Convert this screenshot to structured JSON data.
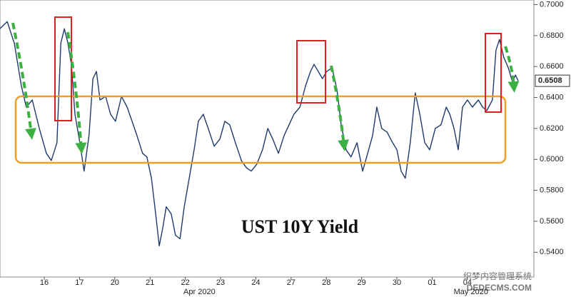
{
  "chart_data": {
    "type": "line",
    "annotation": "UST 10Y Yield",
    "last_value": {
      "value": 0.6508,
      "label": "0.6508"
    },
    "watermark": [
      "织梦内容管理系统",
      "DEDECMS.COM"
    ],
    "xticks": [
      {
        "value": 0.5,
        "label": "16"
      },
      {
        "value": 1.5,
        "label": "17"
      },
      {
        "value": 2.5,
        "label": "20"
      },
      {
        "value": 3.5,
        "label": "21"
      },
      {
        "value": 4.5,
        "label": "22"
      },
      {
        "value": 5.5,
        "label": "23"
      },
      {
        "value": 6.5,
        "label": "24"
      },
      {
        "value": 7.5,
        "label": "27"
      },
      {
        "value": 8.5,
        "label": "28"
      },
      {
        "value": 9.5,
        "label": "29"
      },
      {
        "value": 10.5,
        "label": "30"
      },
      {
        "value": 11.5,
        "label": "01"
      },
      {
        "value": 12.5,
        "label": "04"
      }
    ],
    "month_labels": [
      {
        "value": 4.9,
        "label": "Apr 2020"
      },
      {
        "value": 12.6,
        "label": "May 2020"
      }
    ],
    "xlim": [
      -0.755,
      14.385
    ],
    "ylim": [
      0.524,
      0.703
    ],
    "yticks": [
      {
        "value": 0.54,
        "label": "0.5400"
      },
      {
        "value": 0.56,
        "label": "0.5600"
      },
      {
        "value": 0.58,
        "label": "0.5800"
      },
      {
        "value": 0.6,
        "label": "0.6000"
      },
      {
        "value": 0.62,
        "label": "0.6200"
      },
      {
        "value": 0.64,
        "label": "0.6400"
      },
      {
        "value": 0.66,
        "label": "0.6600"
      },
      {
        "value": 0.68,
        "label": "0.6800"
      },
      {
        "value": 0.7,
        "label": "0.7000"
      }
    ],
    "grid": false,
    "series": [
      {
        "color": "#1f3a6e",
        "x": [
          -0.76,
          -0.55,
          -0.35,
          -0.15,
          -0.01,
          0.16,
          0.36,
          0.56,
          0.7,
          0.86,
          0.97,
          1.07,
          1.17,
          1.27,
          1.37,
          1.51,
          1.63,
          1.77,
          1.88,
          1.98,
          2.08,
          2.24,
          2.38,
          2.52,
          2.69,
          2.85,
          2.99,
          3.13,
          3.29,
          3.41,
          3.54,
          3.66,
          3.76,
          3.86,
          3.96,
          4.1,
          4.22,
          4.35,
          4.47,
          4.61,
          4.75,
          4.87,
          5.01,
          5.15,
          5.32,
          5.48,
          5.62,
          5.76,
          5.92,
          6.09,
          6.23,
          6.37,
          6.53,
          6.69,
          6.84,
          6.98,
          7.14,
          7.3,
          7.44,
          7.58,
          7.75,
          7.91,
          8.05,
          8.15,
          8.27,
          8.39,
          8.51,
          8.66,
          8.8,
          8.92,
          9.06,
          9.2,
          9.37,
          9.53,
          9.67,
          9.81,
          9.93,
          10.07,
          10.22,
          10.38,
          10.5,
          10.62,
          10.74,
          10.88,
          11.02,
          11.15,
          11.29,
          11.43,
          11.59,
          11.75,
          11.9,
          12.0,
          12.12,
          12.24,
          12.36,
          12.5,
          12.64,
          12.81,
          12.93,
          13.05,
          13.21,
          13.31,
          13.41,
          13.53,
          13.66,
          13.78,
          13.86,
          13.94
        ],
        "values": [
          0.6844,
          0.689,
          0.6752,
          0.6476,
          0.6338,
          0.6384,
          0.62,
          0.6039,
          0.5993,
          0.6108,
          0.6752,
          0.6844,
          0.6752,
          0.6614,
          0.6292,
          0.6108,
          0.5924,
          0.6154,
          0.6522,
          0.6568,
          0.6384,
          0.6407,
          0.6292,
          0.6246,
          0.6407,
          0.6338,
          0.6246,
          0.6154,
          0.6039,
          0.6016,
          0.5878,
          0.5648,
          0.5441,
          0.5556,
          0.5694,
          0.5648,
          0.551,
          0.5487,
          0.5694,
          0.5878,
          0.6062,
          0.6246,
          0.6292,
          0.62,
          0.6085,
          0.6131,
          0.6246,
          0.6223,
          0.6108,
          0.5993,
          0.5947,
          0.5924,
          0.597,
          0.6062,
          0.62,
          0.6131,
          0.6039,
          0.6154,
          0.6223,
          0.6292,
          0.6338,
          0.6476,
          0.6568,
          0.6614,
          0.6568,
          0.6522,
          0.6568,
          0.6591,
          0.6453,
          0.6223,
          0.6062,
          0.6016,
          0.6108,
          0.5924,
          0.6039,
          0.6154,
          0.6338,
          0.62,
          0.6177,
          0.6108,
          0.6062,
          0.5924,
          0.5878,
          0.6108,
          0.643,
          0.6292,
          0.6108,
          0.6062,
          0.62,
          0.6223,
          0.6338,
          0.6292,
          0.62,
          0.6062,
          0.6338,
          0.6384,
          0.6338,
          0.6384,
          0.6338,
          0.6315,
          0.6384,
          0.6706,
          0.6775,
          0.666,
          0.6591,
          0.6499,
          0.6545,
          0.6508
        ]
      }
    ]
  }
}
